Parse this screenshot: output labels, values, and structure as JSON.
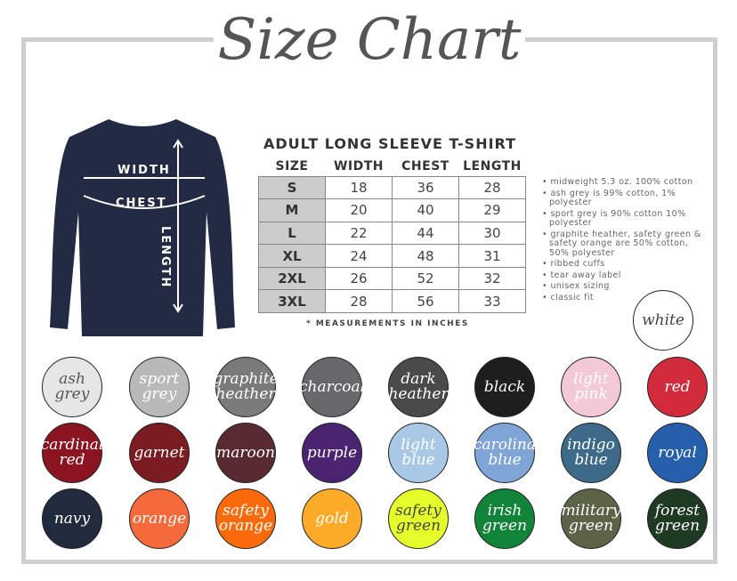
{
  "title": "Size Chart",
  "table": {
    "title": "ADULT LONG SLEEVE T-SHIRT",
    "headers": [
      "SIZE",
      "WIDTH",
      "CHEST",
      "LENGTH"
    ],
    "rows": [
      [
        "S",
        "18",
        "36",
        "28"
      ],
      [
        "M",
        "20",
        "40",
        "29"
      ],
      [
        "L",
        "22",
        "44",
        "30"
      ],
      [
        "XL",
        "24",
        "48",
        "31"
      ],
      [
        "2XL",
        "26",
        "52",
        "32"
      ],
      [
        "3XL",
        "28",
        "56",
        "33"
      ]
    ],
    "note": "* MEASUREMENTS IN INCHES"
  },
  "shirt_labels": {
    "width": "WIDTH",
    "chest": "CHEST",
    "length": "LENGTH"
  },
  "features": [
    "midweight 5.3 oz. 100% cotton",
    "ash grey is 99% cotton, 1% polyester",
    "sport grey is 90% cotton 10% polyester",
    "graphite heather, safety green & safety orange are 50% cotton, 50% polyester",
    "ribbed cuffs",
    "tear away label",
    "unisex sizing",
    "classic fit"
  ],
  "colors": [
    {
      "name": "white",
      "hex": "#ffffff",
      "text": "#444"
    },
    {
      "name": "ash grey",
      "hex": "#e6e6e6",
      "text": "#555"
    },
    {
      "name": "sport grey",
      "hex": "#b9b9b9",
      "text": "#fff"
    },
    {
      "name": "graphite heather",
      "hex": "#7a7a7a",
      "text": "#fff"
    },
    {
      "name": "charcoal",
      "hex": "#666869",
      "text": "#fff"
    },
    {
      "name": "dark heather",
      "hex": "#4a4a4a",
      "text": "#fff"
    },
    {
      "name": "black",
      "hex": "#1e1e1e",
      "text": "#fff"
    },
    {
      "name": "light pink",
      "hex": "#f4c9d6",
      "text": "#fff"
    },
    {
      "name": "red",
      "hex": "#d22b3c",
      "text": "#fff"
    },
    {
      "name": "cardinal red",
      "hex": "#8a1420",
      "text": "#fff"
    },
    {
      "name": "garnet",
      "hex": "#7a1c22",
      "text": "#fff"
    },
    {
      "name": "maroon",
      "hex": "#5a2a32",
      "text": "#fff"
    },
    {
      "name": "purple",
      "hex": "#4a2470",
      "text": "#fff"
    },
    {
      "name": "light blue",
      "hex": "#a9c8e6",
      "text": "#fff"
    },
    {
      "name": "carolina blue",
      "hex": "#7fa4d6",
      "text": "#fff"
    },
    {
      "name": "indigo blue",
      "hex": "#3d6a88",
      "text": "#fff"
    },
    {
      "name": "royal",
      "hex": "#2660ac",
      "text": "#fff"
    },
    {
      "name": "navy",
      "hex": "#222a3e",
      "text": "#fff"
    },
    {
      "name": "orange",
      "hex": "#f6693a",
      "text": "#fff"
    },
    {
      "name": "safety orange",
      "hex": "#fb6a0a",
      "text": "#fff"
    },
    {
      "name": "gold",
      "hex": "#fbab28",
      "text": "#fff"
    },
    {
      "name": "safety green",
      "hex": "#e6fb2a",
      "text": "#444"
    },
    {
      "name": "irish green",
      "hex": "#12843a",
      "text": "#fff"
    },
    {
      "name": "military green",
      "hex": "#5c6448",
      "text": "#fff"
    },
    {
      "name": "forest green",
      "hex": "#1e3a22",
      "text": "#fff"
    }
  ]
}
